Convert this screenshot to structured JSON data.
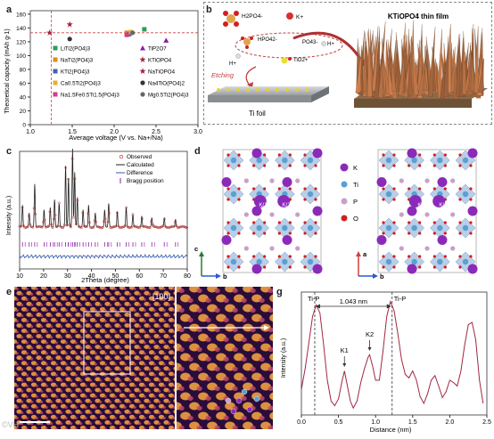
{
  "panel_labels": {
    "a": "a",
    "b": "b",
    "c": "c",
    "d": "d",
    "e": "e",
    "f": "f",
    "g": "g"
  },
  "colors": {
    "green": "#2e9c5a",
    "orange": "#e08a1e",
    "purple": "#8b1aa8",
    "maroon": "#a3203b",
    "pink": "#d63a8a",
    "gray": "#666666",
    "black": "#222222",
    "blue": "#4a5fb0",
    "red_line": "#d04040"
  },
  "chart_data": [
    {
      "panel": "a",
      "type": "scatter",
      "xlabel": "Average voltage (V vs. Na+/Na)",
      "ylabel": "Theoretical capacity (mAh g-1)",
      "xlim": [
        1.0,
        3.0
      ],
      "ylim": [
        0,
        165
      ],
      "xticks": [
        "1.0",
        "1.5",
        "2.0",
        "2.5",
        "3.0"
      ],
      "yticks": [
        "0",
        "20",
        "40",
        "60",
        "80",
        "100",
        "120",
        "140",
        "160"
      ],
      "ref_lines": {
        "x": 1.25,
        "y": 133
      },
      "series": [
        {
          "name": "LiTi2(PO4)3",
          "color": "#2e9c5a",
          "marker": "square",
          "points": [
            [
              2.36,
              138
            ]
          ]
        },
        {
          "name": "NaTi2(PO4)3",
          "color": "#e08a1e",
          "marker": "square",
          "points": [
            [
              2.15,
              133
            ]
          ]
        },
        {
          "name": "KTi2(PO4)3",
          "color": "#4a5fb0",
          "marker": "square",
          "points": [
            [
              2.18,
              131
            ]
          ]
        },
        {
          "name": "Ca0.5Ti2(PO4)3",
          "color": "#e6b030",
          "marker": "square",
          "points": [
            [
              2.2,
              134
            ]
          ]
        },
        {
          "name": "Na1.5Fe0.5Ti1.5(PO4)3",
          "color": "#d63a8a",
          "marker": "square",
          "points": [
            [
              2.15,
              130
            ]
          ]
        },
        {
          "name": "TiP2O7",
          "color": "#8b1aa8",
          "marker": "triangle",
          "points": [
            [
              2.62,
              122
            ]
          ]
        },
        {
          "name": "KTiOPO4",
          "color": "#a3203b",
          "marker": "star",
          "points": [
            [
              1.23,
              133
            ]
          ]
        },
        {
          "name": "NaTiOPO4",
          "color": "#a3203b",
          "marker": "star",
          "points": [
            [
              1.47,
              145
            ]
          ]
        },
        {
          "name": "Na4TiO(PO4)2",
          "color": "#333333",
          "marker": "circle",
          "points": [
            [
              1.47,
              124
            ]
          ]
        },
        {
          "name": "Mg0.5Ti2(PO4)3",
          "color": "#666666",
          "marker": "circle",
          "points": [
            [
              2.22,
              133
            ]
          ]
        }
      ]
    },
    {
      "panel": "c",
      "type": "line",
      "xlabel": "2Theta (degree)",
      "ylabel": "Intensity (a.u.)",
      "xlim": [
        10,
        80
      ],
      "xticks": [
        "10",
        "20",
        "30",
        "40",
        "50",
        "60",
        "70",
        "80"
      ],
      "legend": [
        "Observed",
        "Calculated",
        "Difference",
        "Bragg position"
      ],
      "peaks": [
        [
          11.2,
          0.28
        ],
        [
          14.0,
          0.18
        ],
        [
          16.3,
          0.55
        ],
        [
          20.2,
          0.22
        ],
        [
          22.8,
          0.25
        ],
        [
          24.6,
          0.35
        ],
        [
          26.5,
          0.3
        ],
        [
          29.2,
          0.78
        ],
        [
          30.4,
          0.62
        ],
        [
          32.1,
          1.0
        ],
        [
          33.0,
          0.7
        ],
        [
          34.1,
          0.38
        ],
        [
          36.5,
          0.22
        ],
        [
          38.8,
          0.28
        ],
        [
          41.6,
          0.18
        ],
        [
          45.5,
          0.22
        ],
        [
          47.2,
          0.3
        ],
        [
          50.8,
          0.2
        ],
        [
          54.5,
          0.25
        ],
        [
          57.3,
          0.16
        ],
        [
          61.0,
          0.14
        ],
        [
          65.2,
          0.12
        ],
        [
          70.4,
          0.11
        ],
        [
          75.1,
          0.1
        ]
      ]
    },
    {
      "panel": "g",
      "type": "line",
      "xlabel": "Distance (nm)",
      "ylabel": "Intensity (a.u.)",
      "xlim": [
        0,
        2.5
      ],
      "xticks": [
        "0.0",
        "0.5",
        "1.0",
        "1.5",
        "2.0",
        "2.5"
      ],
      "annotations": {
        "tip_left": "Ti-P",
        "tip_right": "Ti-P",
        "distance": "1.043 nm",
        "k1": "K1",
        "k2": "K2"
      },
      "markers": {
        "tip_left_x": 0.18,
        "tip_right_x": 1.223,
        "k1_x": 0.58,
        "k2_x": 0.92
      },
      "x": [
        0.0,
        0.05,
        0.1,
        0.15,
        0.2,
        0.25,
        0.3,
        0.35,
        0.4,
        0.45,
        0.5,
        0.55,
        0.58,
        0.62,
        0.66,
        0.7,
        0.75,
        0.8,
        0.85,
        0.9,
        0.92,
        0.96,
        1.0,
        1.05,
        1.1,
        1.15,
        1.2,
        1.25,
        1.3,
        1.35,
        1.4,
        1.45,
        1.5,
        1.55,
        1.6,
        1.65,
        1.7,
        1.75,
        1.8,
        1.85,
        1.9,
        1.95,
        2.0,
        2.05,
        2.1,
        2.15,
        2.2,
        2.25,
        2.3,
        2.35,
        2.4,
        2.45
      ],
      "y": [
        0.22,
        0.4,
        0.62,
        0.85,
        0.95,
        0.88,
        0.6,
        0.3,
        0.12,
        0.08,
        0.14,
        0.3,
        0.38,
        0.25,
        0.12,
        0.06,
        0.12,
        0.28,
        0.4,
        0.5,
        0.52,
        0.42,
        0.3,
        0.3,
        0.55,
        0.85,
        0.98,
        0.9,
        0.7,
        0.48,
        0.35,
        0.32,
        0.38,
        0.3,
        0.16,
        0.1,
        0.18,
        0.3,
        0.34,
        0.25,
        0.15,
        0.2,
        0.3,
        0.28,
        0.25,
        0.38,
        0.6,
        0.78,
        0.8,
        0.65,
        0.3,
        0.1
      ]
    }
  ],
  "panel_a": {
    "legend_left": [
      "LiTi2(PO4)3",
      "NaTi2(PO4)3",
      "KTi2(PO4)3",
      "Ca0.5Ti2(PO4)3",
      "Na1.5Fe0.5Ti1.5(PO4)3"
    ],
    "legend_right": [
      "TiP2O7",
      "KTiOPO4",
      "NaTiOPO4",
      "Na4TiO(PO4)2",
      "Mg0.5Ti2(PO4)3"
    ]
  },
  "panel_b": {
    "reactant1": "H2PO4-",
    "reactant2": "K+",
    "ion1": "HPO42-",
    "ion2": "PO43-",
    "ion3": "H+",
    "ion4": "TiO2+",
    "ion5": "H+",
    "etching": "Etching",
    "substrate": "Ti foil",
    "product": "KTiOPO4 thin film"
  },
  "panel_d": {
    "legend": [
      {
        "label": "K",
        "color": "#8b2ab8"
      },
      {
        "label": "Ti",
        "color": "#5aa0d0"
      },
      {
        "label": "P",
        "color": "#c8a0c8"
      },
      {
        "label": "O",
        "color": "#d02020"
      }
    ],
    "site_labels": [
      "K(1)",
      "K(2)"
    ],
    "axes_left": {
      "c": "c",
      "b": "b"
    },
    "axes_right": {
      "a": "a",
      "b": "b"
    }
  },
  "panel_e": {
    "zone_axis": "[100]"
  },
  "watermark": "©VH"
}
